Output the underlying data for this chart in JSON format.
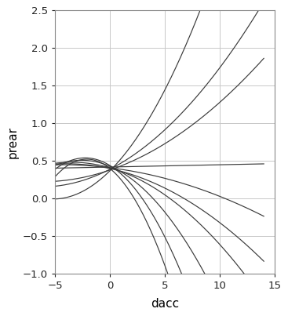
{
  "xlabel": "dacc",
  "ylabel": "prear",
  "xlim": [
    -5,
    15
  ],
  "ylim": [
    -1.0,
    2.5
  ],
  "xticks": [
    -5,
    0,
    5,
    10,
    15
  ],
  "yticks": [
    -1.0,
    -0.5,
    0.0,
    0.5,
    1.0,
    1.5,
    2.0,
    2.5
  ],
  "background_color": "#ffffff",
  "grid_color": "#c8c8c8",
  "line_color": "#3a3a3a",
  "curve_params": [
    [
      0.014,
      0.145,
      0.37
    ],
    [
      0.006,
      0.075,
      0.39
    ],
    [
      0.004,
      0.05,
      0.38
    ],
    [
      0.0,
      0.003,
      0.42
    ],
    [
      -0.002,
      -0.018,
      0.41
    ],
    [
      -0.004,
      -0.032,
      0.4
    ],
    [
      -0.006,
      -0.042,
      0.41
    ],
    [
      -0.012,
      -0.062,
      0.43
    ],
    [
      -0.02,
      -0.09,
      0.44
    ],
    [
      -0.028,
      -0.118,
      0.4
    ]
  ]
}
